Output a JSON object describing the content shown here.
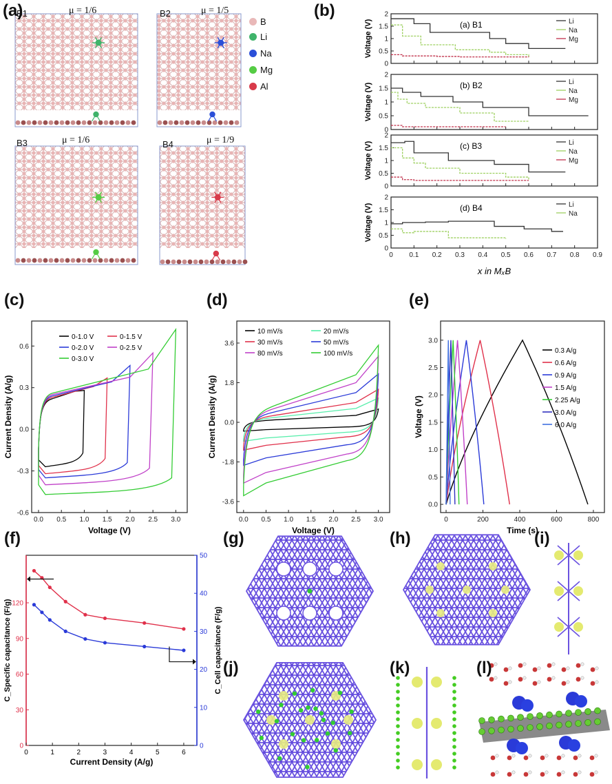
{
  "panel_labels": {
    "a": "(a)",
    "b": "(b)",
    "c": "(c)",
    "d": "(d)",
    "e": "(e)",
    "f": "(f)",
    "g": "(g)",
    "h": "(h)",
    "i": "(i)",
    "j": "(j)",
    "k": "(k)",
    "l": "(l)"
  },
  "panel_a": {
    "structures": [
      {
        "name": "B1",
        "mu": "μ = 1/6",
        "dopant": "Li",
        "color": "#3fb36a"
      },
      {
        "name": "B2",
        "mu": "μ = 1/5",
        "dopant": "Na",
        "color": "#2b4fd8"
      },
      {
        "name": "B3",
        "mu": "μ = 1/6",
        "dopant": "Mg",
        "color": "#55cc44"
      },
      {
        "name": "B4",
        "mu": "μ = 1/9",
        "dopant": "Al",
        "color": "#d83a4a"
      }
    ],
    "legend": [
      {
        "label": "B",
        "color": "#e9b8b8"
      },
      {
        "label": "Li",
        "color": "#3fb36a"
      },
      {
        "label": "Na",
        "color": "#2b4fd8"
      },
      {
        "label": "Mg",
        "color": "#55cc44"
      },
      {
        "label": "Al",
        "color": "#d83a4a"
      }
    ]
  },
  "chart_data": [
    {
      "id": "b",
      "type": "line",
      "xlabel": "x  in  MₓB",
      "ylabel": "Voltage (V)",
      "xlim": [
        0,
        0.9
      ],
      "ylim": [
        0,
        2
      ],
      "xticks": [
        "0",
        "0.1",
        "0.2",
        "0.3",
        "0.4",
        "0.5",
        "0.6",
        "0.7",
        "0.8",
        "0.9"
      ],
      "yticks": [
        "0",
        "0.5",
        "1",
        "1.5",
        "2"
      ],
      "subplots": [
        {
          "title": "(a) B1",
          "series": [
            {
              "name": "Li",
              "color": "#333333",
              "steps": [
                [
                  0,
                  1.8
                ],
                [
                  0.1,
                  1.6
                ],
                [
                  0.17,
                  1.25
                ],
                [
                  0.43,
                  1.0
                ],
                [
                  0.5,
                  0.8
                ],
                [
                  0.6,
                  0.6
                ],
                [
                  0.76,
                  0.6
                ]
              ]
            },
            {
              "name": "Na",
              "color": "#9ed060",
              "steps": [
                [
                  0,
                  1.55
                ],
                [
                  0.05,
                  1.1
                ],
                [
                  0.13,
                  0.75
                ],
                [
                  0.28,
                  0.55
                ],
                [
                  0.43,
                  0.45
                ],
                [
                  0.5,
                  0.35
                ],
                [
                  0.6,
                  0.25
                ]
              ]
            },
            {
              "name": "Mg",
              "color": "#c0304a",
              "steps": [
                [
                  0,
                  0.35
                ],
                [
                  0.05,
                  0.3
                ],
                [
                  0.2,
                  0.28
                ],
                [
                  0.3,
                  0.26
                ],
                [
                  0.6,
                  0.25
                ]
              ]
            }
          ]
        },
        {
          "title": "(b) B2",
          "series": [
            {
              "name": "Li",
              "color": "#333333",
              "steps": [
                [
                  0,
                  1.5
                ],
                [
                  0.05,
                  1.35
                ],
                [
                  0.13,
                  1.2
                ],
                [
                  0.27,
                  1.0
                ],
                [
                  0.4,
                  0.8
                ],
                [
                  0.6,
                  0.5
                ],
                [
                  0.86,
                  0.5
                ]
              ]
            },
            {
              "name": "Na",
              "color": "#9ed060",
              "steps": [
                [
                  0,
                  1.35
                ],
                [
                  0.03,
                  1.1
                ],
                [
                  0.07,
                  0.95
                ],
                [
                  0.15,
                  0.8
                ],
                [
                  0.3,
                  0.6
                ],
                [
                  0.45,
                  0.3
                ],
                [
                  0.6,
                  0.3
                ]
              ]
            },
            {
              "name": "Mg",
              "color": "#c0304a",
              "steps": [
                [
                  0,
                  0.15
                ],
                [
                  0.05,
                  0.1
                ],
                [
                  0.2,
                  0.1
                ],
                [
                  0.5,
                  0.1
                ]
              ]
            }
          ]
        },
        {
          "title": "(c) B3",
          "series": [
            {
              "name": "Li",
              "color": "#333333",
              "steps": [
                [
                  0,
                  1.7
                ],
                [
                  0.06,
                  1.75
                ],
                [
                  0.1,
                  1.3
                ],
                [
                  0.25,
                  1.0
                ],
                [
                  0.45,
                  0.85
                ],
                [
                  0.6,
                  0.55
                ],
                [
                  0.76,
                  0.55
                ]
              ]
            },
            {
              "name": "Na",
              "color": "#9ed060",
              "steps": [
                [
                  0,
                  1.5
                ],
                [
                  0.05,
                  1.1
                ],
                [
                  0.1,
                  0.9
                ],
                [
                  0.15,
                  0.7
                ],
                [
                  0.3,
                  0.5
                ],
                [
                  0.5,
                  0.35
                ],
                [
                  0.6,
                  0.25
                ]
              ]
            },
            {
              "name": "Mg",
              "color": "#c0304a",
              "steps": [
                [
                  0,
                  0.35
                ],
                [
                  0.05,
                  0.25
                ],
                [
                  0.1,
                  0.22
                ],
                [
                  0.6,
                  0.22
                ]
              ]
            }
          ]
        },
        {
          "title": "(d) B4",
          "series": [
            {
              "name": "Li",
              "color": "#333333",
              "steps": [
                [
                  0,
                  0.95
                ],
                [
                  0.05,
                  1.0
                ],
                [
                  0.15,
                  1.02
                ],
                [
                  0.25,
                  1.05
                ],
                [
                  0.45,
                  0.85
                ],
                [
                  0.58,
                  0.75
                ],
                [
                  0.7,
                  0.65
                ],
                [
                  0.75,
                  0.65
                ]
              ]
            },
            {
              "name": "Na",
              "color": "#9ed060",
              "steps": [
                [
                  0,
                  0.75
                ],
                [
                  0.05,
                  0.6
                ],
                [
                  0.1,
                  0.65
                ],
                [
                  0.25,
                  0.4
                ],
                [
                  0.5,
                  0.35
                ]
              ]
            }
          ]
        }
      ]
    },
    {
      "id": "c",
      "type": "line",
      "xlabel": "Voltage (V)",
      "ylabel": "Current Density (A/g)",
      "xlim": [
        -0.15,
        3.25
      ],
      "ylim": [
        -0.6,
        0.78
      ],
      "xticks": [
        0,
        0.5,
        1.0,
        1.5,
        2.0,
        2.5,
        3.0
      ],
      "xticklabels": [
        "0.0",
        "0.5",
        "1.0",
        "1.5",
        "2.0",
        "2.5",
        "3.0"
      ],
      "yticks": [
        -0.6,
        -0.3,
        0.0,
        0.3,
        0.6
      ],
      "yticklabels": [
        "-0.6",
        "-0.3",
        "0.0",
        "0.3",
        "0.6"
      ],
      "series": [
        {
          "name": "0-1.0 V",
          "color": "#000000",
          "vmax": 1.0,
          "top_end": 0.28,
          "top_start": 0.2,
          "bot": -0.25,
          "bot_end": -0.22
        },
        {
          "name": "0-1.5 V",
          "color": "#e0304a",
          "vmax": 1.5,
          "top_end": 0.37,
          "top_start": 0.21,
          "bot": -0.3,
          "bot_end": -0.26
        },
        {
          "name": "0-2.0 V",
          "color": "#2a3ad8",
          "vmax": 2.0,
          "top_end": 0.46,
          "top_start": 0.22,
          "bot": -0.33,
          "bot_end": -0.29
        },
        {
          "name": "0-2.5 V",
          "color": "#c040c8",
          "vmax": 2.5,
          "top_end": 0.55,
          "top_start": 0.23,
          "bot": -0.38,
          "bot_end": -0.33
        },
        {
          "name": "0-3.0 V",
          "color": "#33cc33",
          "vmax": 3.0,
          "top_end": 0.72,
          "top_start": 0.24,
          "bot": -0.45,
          "bot_end": -0.4
        }
      ]
    },
    {
      "id": "d",
      "type": "line",
      "xlabel": "Voltage (V)",
      "ylabel": "Current Density (A/g)",
      "xlim": [
        -0.15,
        3.25
      ],
      "ylim": [
        -4.1,
        4.6
      ],
      "xticks": [
        0,
        0.5,
        1.0,
        1.5,
        2.0,
        2.5,
        3.0
      ],
      "xticklabels": [
        "0.0",
        "0.5",
        "1.0",
        "1.5",
        "2.0",
        "2.5",
        "3.0"
      ],
      "yticks": [
        -3.6,
        -1.8,
        0.0,
        1.8,
        3.6
      ],
      "yticklabels": [
        "-3.6",
        "-1.8",
        "0.0",
        "1.8",
        "3.6"
      ],
      "series": [
        {
          "name": "10 mV/s",
          "color": "#000000",
          "amp": 0.35,
          "top_end": 0.6,
          "bot": -0.35
        },
        {
          "name": "20 mV/s",
          "color": "#55eeaa",
          "amp": 0.7,
          "top_end": 1.1,
          "bot": -0.75
        },
        {
          "name": "30 mV/s",
          "color": "#e0304a",
          "amp": 1.0,
          "top_end": 1.5,
          "bot": -1.1
        },
        {
          "name": "50 mV/s",
          "color": "#2a3ad8",
          "amp": 1.5,
          "top_end": 2.2,
          "bot": -1.7
        },
        {
          "name": "80 mV/s",
          "color": "#c040c8",
          "amp": 2.0,
          "top_end": 3.0,
          "bot": -2.4
        },
        {
          "name": "100 mV/s",
          "color": "#33cc33",
          "amp": 2.4,
          "top_end": 3.5,
          "bot": -2.9
        }
      ]
    },
    {
      "id": "e",
      "type": "line",
      "xlabel": "Time (s)",
      "ylabel": "Voltage (V)",
      "xlim": [
        -30,
        860
      ],
      "ylim": [
        -0.15,
        3.35
      ],
      "xticks": [
        0,
        200,
        400,
        600,
        800
      ],
      "xticklabels": [
        "0",
        "200",
        "400",
        "600",
        "800"
      ],
      "yticks": [
        0,
        0.5,
        1.0,
        1.5,
        2.0,
        2.5,
        3.0
      ],
      "yticklabels": [
        "0.0",
        "0.5",
        "1.0",
        "1.5",
        "2.0",
        "2.5",
        "3.0"
      ],
      "series": [
        {
          "name": "0.3 A/g",
          "color": "#000000",
          "t_charge": 415,
          "t_end": 770
        },
        {
          "name": "0.6 A/g",
          "color": "#e0304a",
          "t_charge": 185,
          "t_end": 345
        },
        {
          "name": "0.9 A/g",
          "color": "#2a3ad8",
          "t_charge": 110,
          "t_end": 205
        },
        {
          "name": "1.5 A/g",
          "color": "#c040c8",
          "t_charge": 62,
          "t_end": 115
        },
        {
          "name": "2.25 A/g",
          "color": "#33cc33",
          "t_charge": 38,
          "t_end": 70
        },
        {
          "name": "3.0 A/g",
          "color": "#3030c0",
          "t_charge": 26,
          "t_end": 48
        },
        {
          "name": "6.0 A/g",
          "color": "#4070e0",
          "t_charge": 12,
          "t_end": 22
        }
      ]
    },
    {
      "id": "f",
      "type": "line",
      "xlabel": "Current Density (A/g)",
      "ylabel_left": "C_Specific capacitance (F/g)",
      "ylabel_right": "C_Cell capacitance (F/g)",
      "xlim": [
        0,
        6.5
      ],
      "ylim_left": [
        0,
        160
      ],
      "ylim_right": [
        0,
        50
      ],
      "xticks": [
        0,
        1,
        2,
        3,
        4,
        5,
        6
      ],
      "xticklabels": [
        "0",
        "1",
        "2",
        "3",
        "4",
        "5",
        "6"
      ],
      "yticks_left": [
        0,
        30,
        60,
        90,
        120
      ],
      "yticklabels_left": [
        "0",
        "30",
        "60",
        "90",
        "120"
      ],
      "yticks_right": [
        0,
        10,
        20,
        30,
        40,
        50
      ],
      "yticklabels_right": [
        "0",
        "10",
        "20",
        "30",
        "40",
        "50"
      ],
      "series": [
        {
          "name": "Specific capacitance",
          "axis": "left",
          "color": "#e0304a",
          "x": [
            0.3,
            0.6,
            0.9,
            1.5,
            2.25,
            3.0,
            4.5,
            6.0
          ],
          "y": [
            147,
            141,
            133,
            121,
            110,
            107,
            103,
            98
          ]
        },
        {
          "name": "Cell capacitance",
          "axis": "right",
          "color": "#2a3ad8",
          "x": [
            0.3,
            0.6,
            0.9,
            1.5,
            2.25,
            3.0,
            4.5,
            6.0
          ],
          "y": [
            37,
            35,
            33,
            30,
            28,
            27,
            26,
            25
          ]
        }
      ]
    }
  ]
}
